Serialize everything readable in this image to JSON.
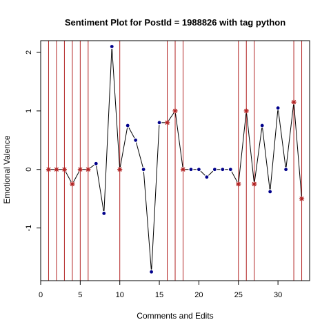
{
  "chart_data": {
    "type": "line",
    "title": "Sentiment Plot for PostId =  1988826  with tag  python",
    "xlabel": "Comments and Edits",
    "ylabel": "Emotional Valence",
    "xlim": [
      0,
      34
    ],
    "ylim": [
      -1.9,
      2.2
    ],
    "x_ticks": [
      "0",
      "5",
      "10",
      "15",
      "20",
      "25",
      "30"
    ],
    "y_ticks": [
      "-1",
      "0",
      "1",
      "2"
    ],
    "grid": false,
    "line_color": "#000000",
    "point_color": "#00008b",
    "edit_line_color": "#b22222",
    "edit_point_color": "#b22222",
    "points": [
      {
        "x": 1,
        "y": 0,
        "edit": true
      },
      {
        "x": 2,
        "y": 0,
        "edit": true
      },
      {
        "x": 3,
        "y": 0,
        "edit": true
      },
      {
        "x": 4,
        "y": -0.25,
        "edit": true
      },
      {
        "x": 5,
        "y": 0,
        "edit": true
      },
      {
        "x": 6,
        "y": 0,
        "edit": true
      },
      {
        "x": 7,
        "y": 0.1,
        "edit": false
      },
      {
        "x": 8,
        "y": -0.75,
        "edit": false
      },
      {
        "x": 9,
        "y": 2.1,
        "edit": false
      },
      {
        "x": 10,
        "y": 0,
        "edit": true
      },
      {
        "x": 11,
        "y": 0.75,
        "edit": false
      },
      {
        "x": 12,
        "y": 0.5,
        "edit": false
      },
      {
        "x": 13,
        "y": 0,
        "edit": false
      },
      {
        "x": 14,
        "y": -1.75,
        "edit": false
      },
      {
        "x": 15,
        "y": 0.8,
        "edit": false
      },
      {
        "x": 16,
        "y": 0.8,
        "edit": true
      },
      {
        "x": 17,
        "y": 1,
        "edit": true
      },
      {
        "x": 18,
        "y": 0,
        "edit": true
      },
      {
        "x": 19,
        "y": 0,
        "edit": false
      },
      {
        "x": 20,
        "y": 0,
        "edit": false
      },
      {
        "x": 21,
        "y": -0.13,
        "edit": false
      },
      {
        "x": 22,
        "y": 0,
        "edit": false
      },
      {
        "x": 23,
        "y": 0,
        "edit": false
      },
      {
        "x": 24,
        "y": 0,
        "edit": false
      },
      {
        "x": 25,
        "y": -0.25,
        "edit": true
      },
      {
        "x": 26,
        "y": 1,
        "edit": true
      },
      {
        "x": 27,
        "y": -0.25,
        "edit": true
      },
      {
        "x": 28,
        "y": 0.75,
        "edit": false
      },
      {
        "x": 29,
        "y": -0.38,
        "edit": false
      },
      {
        "x": 30,
        "y": 1.05,
        "edit": false
      },
      {
        "x": 31,
        "y": 0,
        "edit": false
      },
      {
        "x": 32,
        "y": 1.15,
        "edit": true
      },
      {
        "x": 33,
        "y": -0.5,
        "edit": true
      }
    ]
  }
}
